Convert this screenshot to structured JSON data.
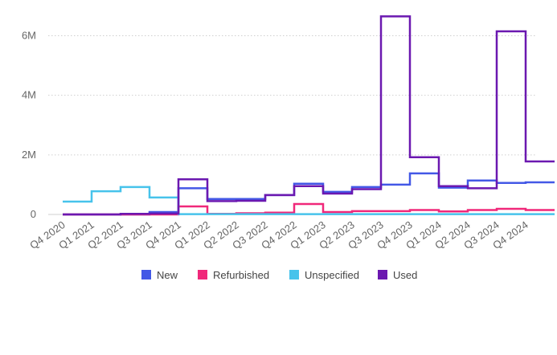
{
  "chart_data": {
    "type": "line",
    "step": true,
    "categories": [
      "Q4 2020",
      "Q1 2021",
      "Q2 2021",
      "Q3 2021",
      "Q4 2021",
      "Q1 2022",
      "Q2 2022",
      "Q3 2022",
      "Q4 2022",
      "Q1 2023",
      "Q2 2023",
      "Q3 2023",
      "Q4 2023",
      "Q1 2024",
      "Q2 2024",
      "Q3 2024",
      "Q4 2024"
    ],
    "ylim": [
      0,
      7200000
    ],
    "yticks": [
      0,
      2000000,
      4000000,
      6000000
    ],
    "ytick_labels": [
      "0",
      "2M",
      "4M",
      "6M"
    ],
    "grid": true,
    "legend_position": "bottom",
    "series": [
      {
        "name": "New",
        "color": "#4358e6",
        "values": [
          0,
          0,
          0,
          80000,
          880000,
          520000,
          520000,
          650000,
          1030000,
          760000,
          920000,
          1000000,
          1380000,
          900000,
          1140000,
          1060000,
          1080000
        ]
      },
      {
        "name": "Refurbished",
        "color": "#f0287a",
        "values": [
          0,
          0,
          0,
          0,
          270000,
          20000,
          40000,
          60000,
          350000,
          80000,
          110000,
          110000,
          150000,
          100000,
          150000,
          190000,
          150000
        ]
      },
      {
        "name": "Unspecified",
        "color": "#47c3eb",
        "values": [
          430000,
          780000,
          920000,
          570000,
          10000,
          10000,
          10000,
          10000,
          10000,
          10000,
          10000,
          10000,
          10000,
          10000,
          10000,
          10000,
          10000
        ]
      },
      {
        "name": "Used",
        "color": "#6b18b0",
        "values": [
          0,
          0,
          20000,
          30000,
          1180000,
          450000,
          460000,
          650000,
          950000,
          700000,
          850000,
          6650000,
          1920000,
          950000,
          880000,
          6150000,
          1780000
        ]
      }
    ]
  }
}
